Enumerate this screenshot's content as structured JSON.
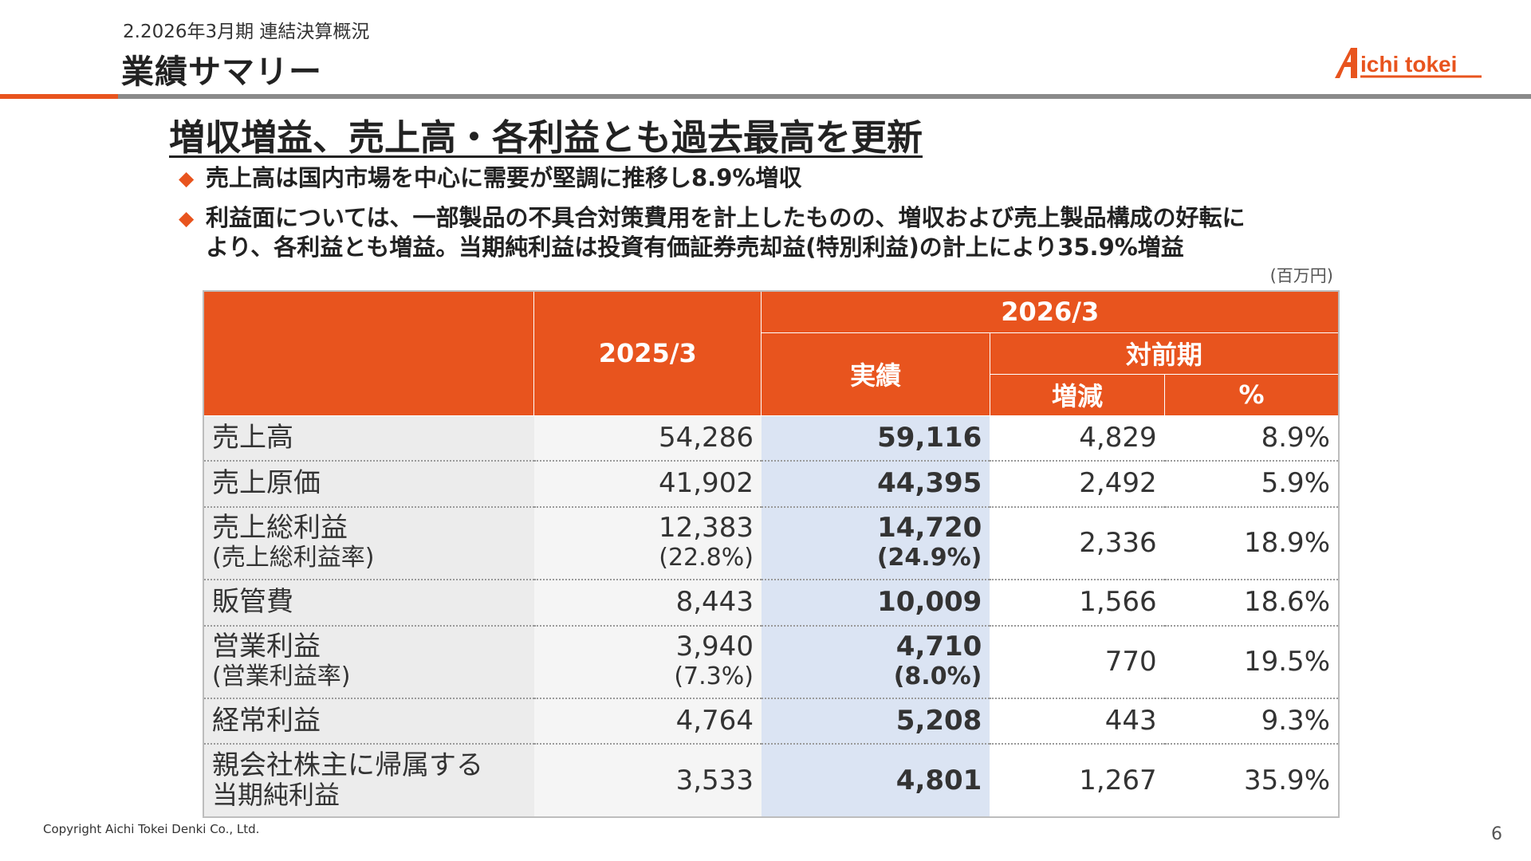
{
  "header": {
    "section": "2.2026年3月期 連結決算概況",
    "title": "業績サマリー",
    "logo_text": "Aichi tokei"
  },
  "headline": "増収増益、売上高・各利益とも過去最高を更新",
  "bullets": [
    "売上高は国内市場を中心に需要が堅調に推移し8.9%増収",
    "利益面については、一部製品の不具合対策費用を計上したものの、増収および売上製品構成の好転に",
    "より、各利益とも増益。当期純利益は投資有価証券売却益(特別利益)の計上により35.9%増益"
  ],
  "bullet_mark": "◆",
  "unit": "(百万円)",
  "table": {
    "col_prev": "2025/3",
    "col_cur_group": "2026/3",
    "col_cur_actual": "実績",
    "col_yoy_group": "対前期",
    "col_diff": "増減",
    "col_pct": "%",
    "rows": [
      {
        "label": "売上高",
        "label2": "",
        "prev": "54,286",
        "prev2": "",
        "cur": "59,116",
        "cur2": "",
        "diff": "4,829",
        "pct": "8.9%"
      },
      {
        "label": "売上原価",
        "label2": "",
        "prev": "41,902",
        "prev2": "",
        "cur": "44,395",
        "cur2": "",
        "diff": "2,492",
        "pct": "5.9%"
      },
      {
        "label": "売上総利益",
        "label2": "(売上総利益率)",
        "prev": "12,383",
        "prev2": "(22.8%)",
        "cur": "14,720",
        "cur2": "(24.9%)",
        "diff": "2,336",
        "pct": "18.9%"
      },
      {
        "label": "販管費",
        "label2": "",
        "prev": "8,443",
        "prev2": "",
        "cur": "10,009",
        "cur2": "",
        "diff": "1,566",
        "pct": "18.6%"
      },
      {
        "label": "営業利益",
        "label2": "(営業利益率)",
        "prev": "3,940",
        "prev2": "(7.3%)",
        "cur": "4,710",
        "cur2": "(8.0%)",
        "diff": "770",
        "pct": "19.5%"
      },
      {
        "label": "経常利益",
        "label2": "",
        "prev": "4,764",
        "prev2": "",
        "cur": "5,208",
        "cur2": "",
        "diff": "443",
        "pct": "9.3%"
      },
      {
        "label": "親会社株主に帰属する",
        "label2": "当期純利益",
        "prev": "3,533",
        "prev2": "",
        "cur": "4,801",
        "cur2": "",
        "diff": "1,267",
        "pct": "35.9%"
      }
    ]
  },
  "footer": {
    "copyright": "Copyright Aichi Tokei Denki Co., Ltd.",
    "page_number": "6"
  },
  "colors": {
    "accent_orange": "#e8541e",
    "highlight_blue": "#dbe4f3",
    "label_grey": "#ececec"
  }
}
